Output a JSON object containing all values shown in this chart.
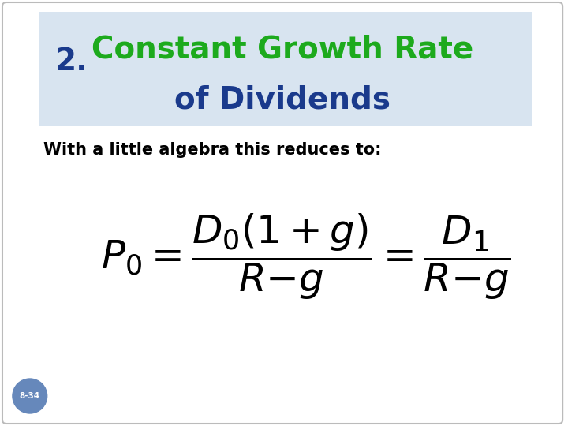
{
  "title_number": "2.",
  "title_line1": "Constant Growth Rate",
  "title_line2": "of Dividends",
  "title_number_color": "#1a3a8c",
  "title_line1_color": "#1daa1d",
  "title_line2_color": "#1a3a8c",
  "title_bg_color": "#d8e4f0",
  "body_text": "With a little algebra this reduces to:",
  "slide_bg_color": "#ffffff",
  "border_color": "#bbbbbb",
  "badge_text": "8-34",
  "badge_bg_color": "#6688bb",
  "badge_text_color": "#ffffff"
}
